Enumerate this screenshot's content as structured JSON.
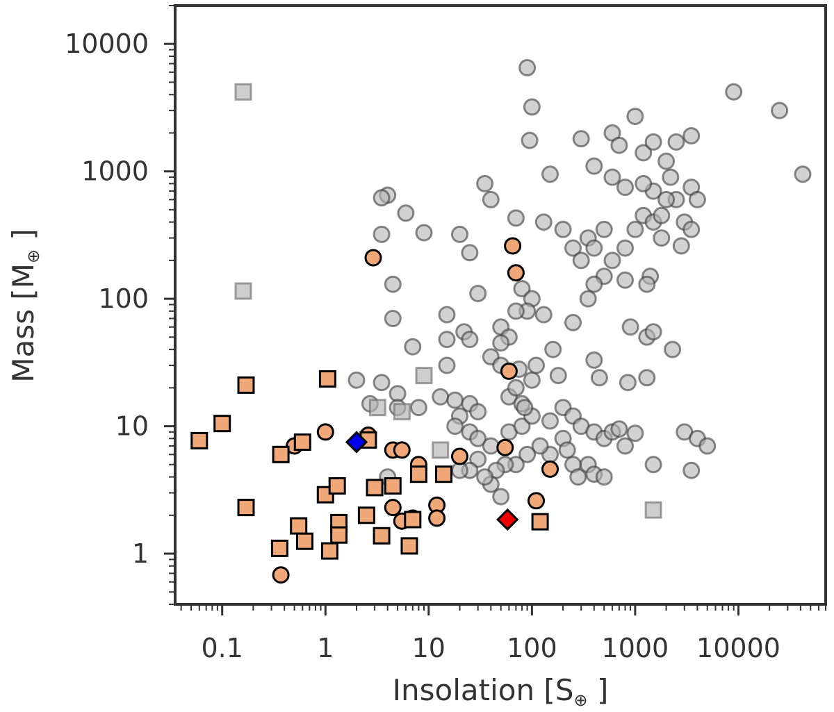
{
  "chart_data": {
    "type": "scatter",
    "xscale": "log",
    "yscale": "log",
    "xlim": [
      0.035,
      70000
    ],
    "ylim": [
      0.4,
      20000
    ],
    "xlabel": "Insolation [S",
    "xlabel_sub": "⊕",
    "xlabel_end": " ]",
    "ylabel": "Mass [M",
    "ylabel_sub": "⊕",
    "ylabel_end": " ]",
    "x_ticks": [
      0.1,
      1,
      10,
      100,
      1000,
      10000
    ],
    "x_tick_labels": [
      "0.1",
      "1",
      "10",
      "100",
      "1000",
      "10000"
    ],
    "y_ticks": [
      1,
      10,
      100,
      1000,
      10000
    ],
    "y_tick_labels": [
      "1",
      "10",
      "100",
      "1000",
      "10000"
    ],
    "colors": {
      "gray_fill": "#b4b4b4",
      "gray_stroke": "#3c3c3c",
      "orange_fill": "#f0a878",
      "highlight_blue": "#0000ee",
      "highlight_red": "#ee0000"
    },
    "series": [
      {
        "name": "gray-circles",
        "marker": "circle",
        "points": [
          [
            90,
            6500
          ],
          [
            100,
            3200
          ],
          [
            95,
            1750
          ],
          [
            9000,
            4200
          ],
          [
            25000,
            3000
          ],
          [
            42000,
            950
          ],
          [
            1000,
            2700
          ],
          [
            300,
            1800
          ],
          [
            600,
            2000
          ],
          [
            700,
            1600
          ],
          [
            1200,
            1400
          ],
          [
            1500,
            1700
          ],
          [
            2500,
            1700
          ],
          [
            3500,
            1900
          ],
          [
            2000,
            1200
          ],
          [
            3500,
            750
          ],
          [
            4000,
            600
          ],
          [
            3000,
            400
          ],
          [
            3500,
            350
          ],
          [
            2500,
            600
          ],
          [
            1500,
            700
          ],
          [
            1200,
            800
          ],
          [
            800,
            750
          ],
          [
            600,
            900
          ],
          [
            400,
            1100
          ],
          [
            150,
            950
          ],
          [
            35,
            800
          ],
          [
            40,
            600
          ],
          [
            4,
            650
          ],
          [
            3.5,
            620
          ],
          [
            6,
            470
          ],
          [
            9,
            330
          ],
          [
            3.5,
            320
          ],
          [
            20,
            320
          ],
          [
            25,
            230
          ],
          [
            70,
            430
          ],
          [
            130,
            400
          ],
          [
            200,
            350
          ],
          [
            250,
            250
          ],
          [
            300,
            200
          ],
          [
            350,
            300
          ],
          [
            400,
            250
          ],
          [
            500,
            350
          ],
          [
            600,
            200
          ],
          [
            800,
            250
          ],
          [
            1000,
            350
          ],
          [
            1200,
            450
          ],
          [
            1500,
            400
          ],
          [
            1800,
            300
          ],
          [
            1400,
            150
          ],
          [
            1300,
            130
          ],
          [
            800,
            140
          ],
          [
            500,
            150
          ],
          [
            400,
            130
          ],
          [
            350,
            100
          ],
          [
            4.5,
            130
          ],
          [
            4.5,
            70
          ],
          [
            15,
            75
          ],
          [
            30,
            110
          ],
          [
            80,
            120
          ],
          [
            100,
            100
          ],
          [
            90,
            80
          ],
          [
            130,
            75
          ],
          [
            70,
            80
          ],
          [
            50,
            60
          ],
          [
            60,
            50
          ],
          [
            50,
            45
          ],
          [
            40,
            35
          ],
          [
            22,
            55
          ],
          [
            25,
            48
          ],
          [
            15,
            48
          ],
          [
            15,
            30
          ],
          [
            7,
            42
          ],
          [
            2,
            23
          ],
          [
            2.7,
            15
          ],
          [
            3.5,
            22
          ],
          [
            5,
            18
          ],
          [
            5,
            14
          ],
          [
            8,
            14
          ],
          [
            13,
            17
          ],
          [
            18,
            16
          ],
          [
            25,
            15
          ],
          [
            30,
            13
          ],
          [
            20,
            12
          ],
          [
            18,
            10
          ],
          [
            25,
            9
          ],
          [
            30,
            8
          ],
          [
            40,
            7
          ],
          [
            60,
            9
          ],
          [
            80,
            10
          ],
          [
            100,
            12
          ],
          [
            150,
            11
          ],
          [
            200,
            14
          ],
          [
            250,
            12
          ],
          [
            300,
            10
          ],
          [
            400,
            9
          ],
          [
            500,
            8
          ],
          [
            600,
            9
          ],
          [
            700,
            9.5
          ],
          [
            800,
            7
          ],
          [
            1000,
            8.8
          ],
          [
            60,
            17
          ],
          [
            80,
            15
          ],
          [
            100,
            23
          ],
          [
            110,
            30
          ],
          [
            160,
            40
          ],
          [
            180,
            25
          ],
          [
            250,
            65
          ],
          [
            70,
            20
          ],
          [
            85,
            14
          ],
          [
            75,
            28
          ],
          [
            50,
            30
          ],
          [
            200,
            8
          ],
          [
            220,
            6.5
          ],
          [
            250,
            5
          ],
          [
            280,
            4
          ],
          [
            350,
            5
          ],
          [
            400,
            4.2
          ],
          [
            500,
            4
          ],
          [
            150,
            6
          ],
          [
            120,
            7
          ],
          [
            90,
            6
          ],
          [
            70,
            5
          ],
          [
            55,
            5
          ],
          [
            45,
            4.5
          ],
          [
            40,
            3.5
          ],
          [
            35,
            4
          ],
          [
            30,
            5.5
          ],
          [
            25,
            4.5
          ],
          [
            20,
            4.5
          ],
          [
            4,
            4
          ],
          [
            50,
            2.8
          ],
          [
            900,
            60
          ],
          [
            1300,
            50
          ],
          [
            1500,
            55
          ],
          [
            2300,
            40
          ],
          [
            3000,
            9
          ],
          [
            3500,
            4.5
          ],
          [
            4000,
            8
          ],
          [
            5000,
            7
          ],
          [
            1500,
            5
          ],
          [
            400,
            33
          ],
          [
            450,
            24
          ],
          [
            850,
            22
          ],
          [
            1300,
            24
          ],
          [
            2000,
            600
          ],
          [
            2200,
            900
          ],
          [
            1800,
            450
          ],
          [
            2800,
            260
          ]
        ]
      },
      {
        "name": "gray-squares",
        "marker": "square",
        "points": [
          [
            0.16,
            4200
          ],
          [
            0.16,
            115
          ],
          [
            3.2,
            14
          ],
          [
            5.5,
            13
          ],
          [
            9,
            25
          ],
          [
            13,
            6.5
          ],
          [
            1500,
            2.2
          ]
        ]
      },
      {
        "name": "orange-circles",
        "marker": "circle",
        "points": [
          [
            2.9,
            210
          ],
          [
            65,
            260
          ],
          [
            70,
            160
          ],
          [
            60,
            27
          ],
          [
            1,
            9
          ],
          [
            0.5,
            7
          ],
          [
            2.6,
            8.5
          ],
          [
            4.5,
            6.5
          ],
          [
            5.5,
            6.5
          ],
          [
            8,
            5
          ],
          [
            20,
            5.8
          ],
          [
            55,
            6.8
          ],
          [
            150,
            4.6
          ],
          [
            110,
            2.6
          ],
          [
            4.5,
            2.3
          ],
          [
            12,
            2.4
          ],
          [
            12,
            1.9
          ],
          [
            7,
            1.9
          ],
          [
            5.5,
            1.8
          ],
          [
            0.37,
            0.68
          ]
        ]
      },
      {
        "name": "orange-squares",
        "marker": "square",
        "points": [
          [
            0.06,
            7.7
          ],
          [
            0.1,
            10.5
          ],
          [
            0.17,
            21
          ],
          [
            1.05,
            23.5
          ],
          [
            0.17,
            2.3
          ],
          [
            0.37,
            6
          ],
          [
            0.6,
            7.5
          ],
          [
            2.6,
            7.8
          ],
          [
            1,
            2.9
          ],
          [
            1.3,
            3.4
          ],
          [
            3,
            3.3
          ],
          [
            4.5,
            3.4
          ],
          [
            8,
            4.2
          ],
          [
            14,
            4.2
          ],
          [
            2.5,
            2
          ],
          [
            0.55,
            1.65
          ],
          [
            0.63,
            1.25
          ],
          [
            1.35,
            1.75
          ],
          [
            1.35,
            1.4
          ],
          [
            3.5,
            1.38
          ],
          [
            7,
            1.85
          ],
          [
            6.5,
            1.15
          ],
          [
            0.36,
            1.1
          ],
          [
            1.1,
            1.05
          ],
          [
            120,
            1.78
          ]
        ]
      },
      {
        "name": "highlight-blue",
        "marker": "diamond",
        "points": [
          [
            2,
            7.5
          ]
        ]
      },
      {
        "name": "highlight-red",
        "marker": "diamond",
        "points": [
          [
            58,
            1.85
          ]
        ]
      }
    ]
  }
}
